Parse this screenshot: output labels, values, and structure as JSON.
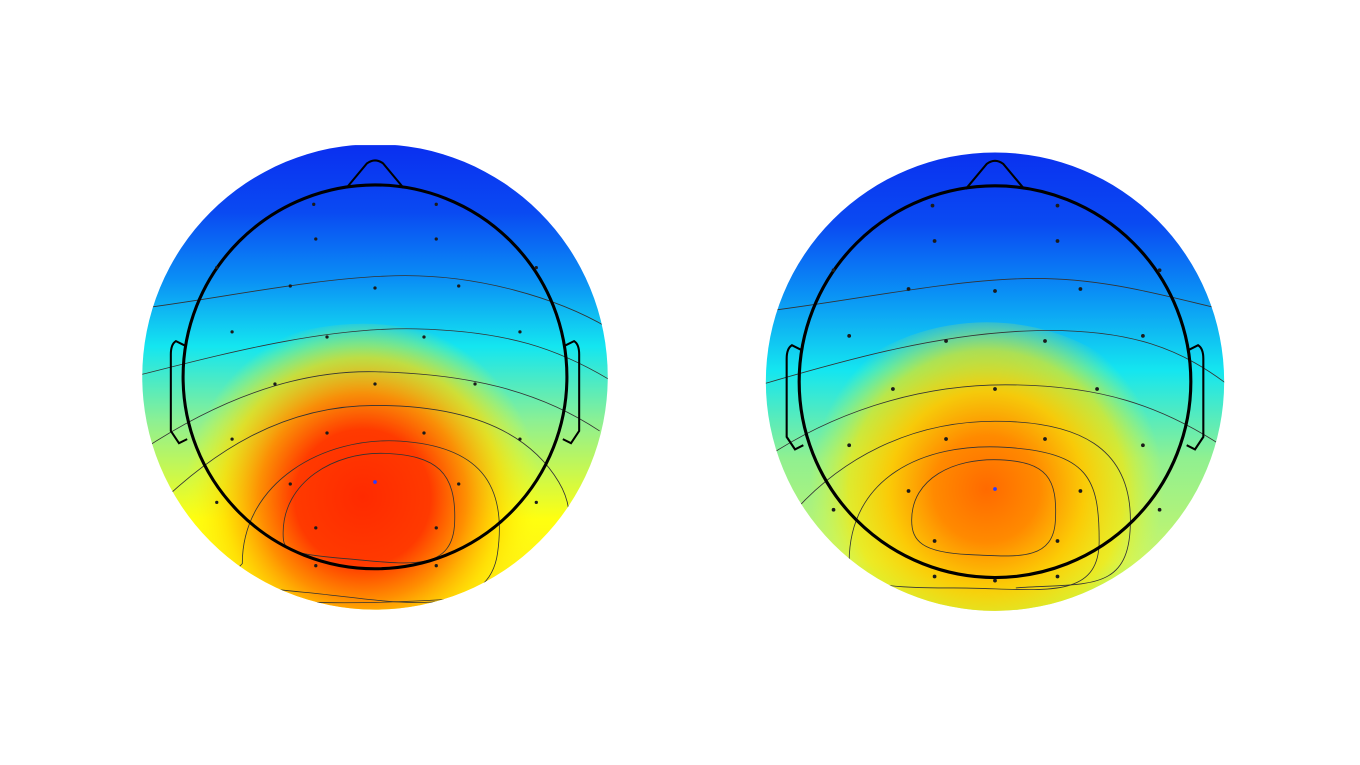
{
  "colors": {
    "background": "#ffffff",
    "colormap": [
      "#0a2ff0",
      "#0a7ff5",
      "#14e6f0",
      "#90f090",
      "#ffff10",
      "#ffa500",
      "#ff2a00"
    ],
    "head_outline": "#000000",
    "contour_line": "#333333",
    "electrode": "#1a1a1a",
    "peak_electrode": "#2a3cff"
  },
  "topomaps": [
    {
      "intensity": "strong",
      "peak_color": "#ff2a00",
      "mid_color": "#ffd800",
      "edge_color": "#ffe31a",
      "peak_location": "centro-parietal"
    },
    {
      "intensity": "moderate",
      "peak_color": "#ff6a00",
      "mid_color": "#ffe600",
      "edge_color": "#7cf58a",
      "peak_location": "centro-parietal"
    }
  ]
}
